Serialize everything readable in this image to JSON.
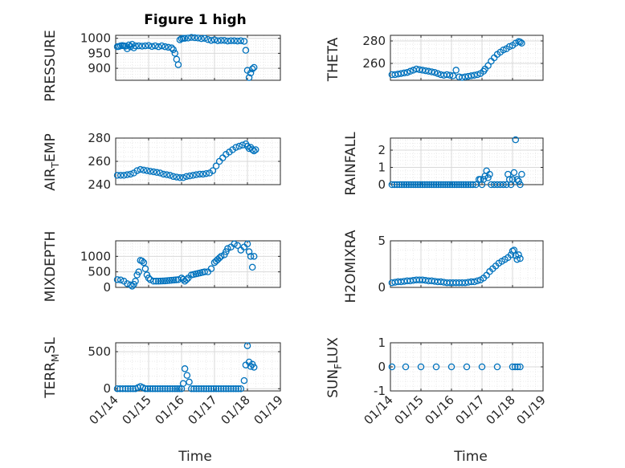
{
  "figure": {
    "title": "Figure 1 high"
  },
  "styles": {
    "marker_color": "#0072bd",
    "grid_color": "#d9d9d9",
    "axis_color": "#262626"
  },
  "chart_data": [
    {
      "type": "scatter",
      "ylabel": "PRESSURE",
      "xlim": [
        0,
        5
      ],
      "ylim": [
        860,
        1010
      ],
      "yticks": [
        900,
        950,
        1000
      ],
      "grid": true,
      "x": [
        0.05,
        0.1,
        0.15,
        0.2,
        0.25,
        0.3,
        0.35,
        0.4,
        0.45,
        0.5,
        0.55,
        0.6,
        0.7,
        0.8,
        0.9,
        1.0,
        1.1,
        1.2,
        1.3,
        1.4,
        1.5,
        1.6,
        1.7,
        1.75,
        1.8,
        1.85,
        1.9,
        1.95,
        2.0,
        2.05,
        2.1,
        2.2,
        2.3,
        2.4,
        2.5,
        2.6,
        2.7,
        2.8,
        2.9,
        3.0,
        3.1,
        3.2,
        3.3,
        3.4,
        3.5,
        3.6,
        3.7,
        3.8,
        3.9,
        3.95,
        4.0,
        4.05,
        4.1,
        4.15,
        4.2
      ],
      "y": [
        972,
        973,
        975,
        976,
        975,
        974,
        965,
        978,
        972,
        980,
        968,
        975,
        975,
        974,
        975,
        976,
        973,
        975,
        972,
        975,
        972,
        970,
        968,
        962,
        950,
        930,
        912,
        995,
        999,
        1000,
        1000,
        1001,
        1003,
        1002,
        1001,
        999,
        1000,
        996,
        993,
        995,
        992,
        993,
        993,
        991,
        992,
        992,
        991,
        992,
        990,
        960,
        893,
        869,
        884,
        898,
        903
      ]
    },
    {
      "type": "scatter",
      "ylabel": "THETA",
      "xlim": [
        0,
        5
      ],
      "ylim": [
        245,
        285
      ],
      "yticks": [
        260,
        280
      ],
      "grid": true,
      "x": [
        0.05,
        0.15,
        0.25,
        0.35,
        0.45,
        0.55,
        0.65,
        0.75,
        0.85,
        0.95,
        1.05,
        1.15,
        1.25,
        1.35,
        1.45,
        1.55,
        1.65,
        1.75,
        1.85,
        1.95,
        2.05,
        2.15,
        2.25,
        2.35,
        2.45,
        2.55,
        2.65,
        2.75,
        2.85,
        2.95,
        3.05,
        3.1,
        3.2,
        3.3,
        3.4,
        3.5,
        3.6,
        3.7,
        3.8,
        3.9,
        4.0,
        4.1,
        4.2,
        4.25,
        4.3
      ],
      "y": [
        250,
        250,
        250.5,
        251,
        251.5,
        252,
        253,
        254,
        255,
        254.5,
        254,
        253.5,
        253,
        252.5,
        252,
        251,
        250,
        249.5,
        250,
        249.5,
        249,
        254,
        248,
        247.5,
        248,
        248.5,
        249,
        249.5,
        250,
        251,
        253,
        255,
        258,
        262,
        265,
        268,
        270,
        272,
        273,
        275,
        276,
        278,
        279.5,
        279,
        278
      ]
    },
    {
      "type": "scatter",
      "ylabel": "AIR_TEMP",
      "xlim": [
        0,
        5
      ],
      "ylim": [
        240,
        280
      ],
      "yticks": [
        240,
        260,
        280
      ],
      "grid": true,
      "x": [
        0.05,
        0.15,
        0.25,
        0.35,
        0.45,
        0.55,
        0.65,
        0.75,
        0.85,
        0.95,
        1.05,
        1.15,
        1.25,
        1.35,
        1.45,
        1.55,
        1.65,
        1.75,
        1.85,
        1.95,
        2.05,
        2.15,
        2.25,
        2.35,
        2.45,
        2.55,
        2.65,
        2.75,
        2.85,
        2.95,
        3.05,
        3.15,
        3.25,
        3.35,
        3.45,
        3.55,
        3.65,
        3.75,
        3.85,
        3.95,
        4.0,
        4.05,
        4.1,
        4.15,
        4.2,
        4.25
      ],
      "y": [
        248,
        248,
        248,
        248.5,
        249,
        250,
        252,
        253,
        252.5,
        252,
        251.5,
        251,
        250.5,
        250,
        249,
        248.5,
        248,
        247,
        246.5,
        246,
        246,
        247,
        247.5,
        248,
        248.5,
        249,
        249,
        249.5,
        250,
        252,
        256,
        260,
        263,
        266,
        268,
        270,
        272,
        273,
        274,
        275,
        273,
        271,
        272,
        270,
        269,
        270
      ]
    },
    {
      "type": "scatter",
      "ylabel": "RAINFALL",
      "xlim": [
        0,
        5
      ],
      "ylim": [
        0,
        2.7
      ],
      "yticks": [
        0,
        1,
        2
      ],
      "grid": true,
      "x": [
        0.05,
        0.3,
        0.6,
        0.9,
        1.2,
        1.5,
        1.8,
        2.1,
        2.4,
        2.7,
        2.8,
        2.9,
        2.95,
        3.0,
        3.05,
        3.1,
        3.15,
        3.2,
        3.25,
        3.3,
        3.4,
        3.5,
        3.6,
        3.7,
        3.8,
        3.85,
        3.9,
        3.95,
        4.0,
        4.05,
        4.1,
        4.15,
        4.2,
        4.25,
        4.3
      ],
      "y": [
        0,
        0,
        0,
        0,
        0,
        0,
        0,
        0,
        0,
        0,
        0,
        0.3,
        0.3,
        0,
        0.3,
        0.5,
        0.8,
        0.4,
        0.6,
        0,
        0,
        0,
        0,
        0,
        0,
        0.6,
        0.3,
        0,
        0.3,
        0.7,
        2.6,
        0.3,
        0.2,
        0,
        0.6
      ]
    },
    {
      "type": "scatter",
      "ylabel": "MIXDEPTH",
      "xlim": [
        0,
        5
      ],
      "ylim": [
        0,
        1500
      ],
      "yticks": [
        0,
        500,
        1000
      ],
      "grid": true,
      "x": [
        0.05,
        0.15,
        0.25,
        0.35,
        0.45,
        0.5,
        0.55,
        0.6,
        0.65,
        0.7,
        0.75,
        0.8,
        0.85,
        0.9,
        0.95,
        1.0,
        1.05,
        1.15,
        1.3,
        1.5,
        1.7,
        1.9,
        2.0,
        2.05,
        2.1,
        2.15,
        2.2,
        2.3,
        2.5,
        2.7,
        2.8,
        2.9,
        3.0,
        3.05,
        3.1,
        3.15,
        3.2,
        3.3,
        3.35,
        3.4,
        3.5,
        3.6,
        3.7,
        3.8,
        3.9,
        4.0,
        4.05,
        4.1,
        4.15,
        4.2
      ],
      "y": [
        250,
        240,
        200,
        120,
        80,
        40,
        100,
        200,
        400,
        500,
        870,
        850,
        800,
        600,
        400,
        300,
        250,
        200,
        200,
        210,
        230,
        250,
        300,
        260,
        200,
        250,
        300,
        400,
        450,
        500,
        500,
        600,
        800,
        850,
        900,
        950,
        1000,
        1050,
        1150,
        1250,
        1300,
        1400,
        1350,
        1200,
        1300,
        1400,
        1150,
        1000,
        650,
        1000
      ]
    },
    {
      "type": "scatter",
      "ylabel": "H2OMIXRA",
      "xlim": [
        0,
        5
      ],
      "ylim": [
        0,
        5
      ],
      "yticks": [
        0,
        5
      ],
      "grid": true,
      "x": [
        0.05,
        0.15,
        0.25,
        0.35,
        0.45,
        0.55,
        0.65,
        0.75,
        0.85,
        0.95,
        1.05,
        1.15,
        1.25,
        1.35,
        1.45,
        1.55,
        1.65,
        1.75,
        1.85,
        1.95,
        2.05,
        2.15,
        2.25,
        2.35,
        2.45,
        2.55,
        2.65,
        2.75,
        2.85,
        2.95,
        3.05,
        3.15,
        3.25,
        3.35,
        3.45,
        3.55,
        3.65,
        3.75,
        3.85,
        3.95,
        4.0,
        4.05,
        4.1,
        4.15,
        4.2,
        4.25
      ],
      "y": [
        0.5,
        0.55,
        0.6,
        0.6,
        0.65,
        0.7,
        0.7,
        0.75,
        0.8,
        0.8,
        0.8,
        0.75,
        0.7,
        0.7,
        0.65,
        0.6,
        0.6,
        0.55,
        0.5,
        0.5,
        0.5,
        0.5,
        0.5,
        0.5,
        0.5,
        0.55,
        0.6,
        0.6,
        0.7,
        0.8,
        1.0,
        1.3,
        1.7,
        2.0,
        2.3,
        2.6,
        2.8,
        3.0,
        3.2,
        3.5,
        3.9,
        4.0,
        3.4,
        3.0,
        3.5,
        3.1
      ]
    },
    {
      "type": "scatter",
      "ylabel": "TERR_MSL",
      "xlim": [
        0,
        5
      ],
      "ylim": [
        -30,
        620
      ],
      "yticks": [
        0,
        500
      ],
      "grid": true,
      "x": [
        0.05,
        0.3,
        0.6,
        0.75,
        0.9,
        1.2,
        1.5,
        1.8,
        2.0,
        2.05,
        2.1,
        2.3,
        2.6,
        2.9,
        3.2,
        3.5,
        3.8,
        3.9,
        3.95,
        4.0,
        4.05,
        4.1,
        4.15,
        4.2
      ],
      "y": [
        0,
        0,
        0,
        30,
        0,
        0,
        0,
        0,
        0,
        70,
        270,
        0,
        0,
        0,
        0,
        0,
        0,
        110,
        320,
        580,
        360,
        300,
        330,
        290
      ]
    },
    {
      "type": "scatter",
      "ylabel": "SUN_FLUX",
      "xlim": [
        0,
        5
      ],
      "ylim": [
        -1,
        1
      ],
      "yticks": [
        -1,
        0,
        1
      ],
      "grid": true,
      "x": [
        0.05,
        0.5,
        1.0,
        1.5,
        2.0,
        2.5,
        3.0,
        3.5,
        4.0,
        4.25
      ],
      "y": [
        0,
        0,
        0,
        0,
        0,
        0,
        0,
        0,
        0,
        0
      ]
    }
  ],
  "labels": {
    "pressure": "PRESSURE",
    "theta": "THETA",
    "air_main": "AIR",
    "air_sub": "T",
    "air_rest": "EMP",
    "rainfall": "RAINFALL",
    "mixdepth": "MIXDEPTH",
    "h2o": "H2OMIXRA",
    "terr_main": "TERR",
    "terr_sub": "M",
    "terr_rest": "SL",
    "sun_main": "SUN",
    "sun_sub": "F",
    "sun_rest": "LUX",
    "xlabel": "Time"
  },
  "x_ticks": [
    "01/14",
    "01/15",
    "01/16",
    "01/17",
    "01/18",
    "01/19"
  ]
}
